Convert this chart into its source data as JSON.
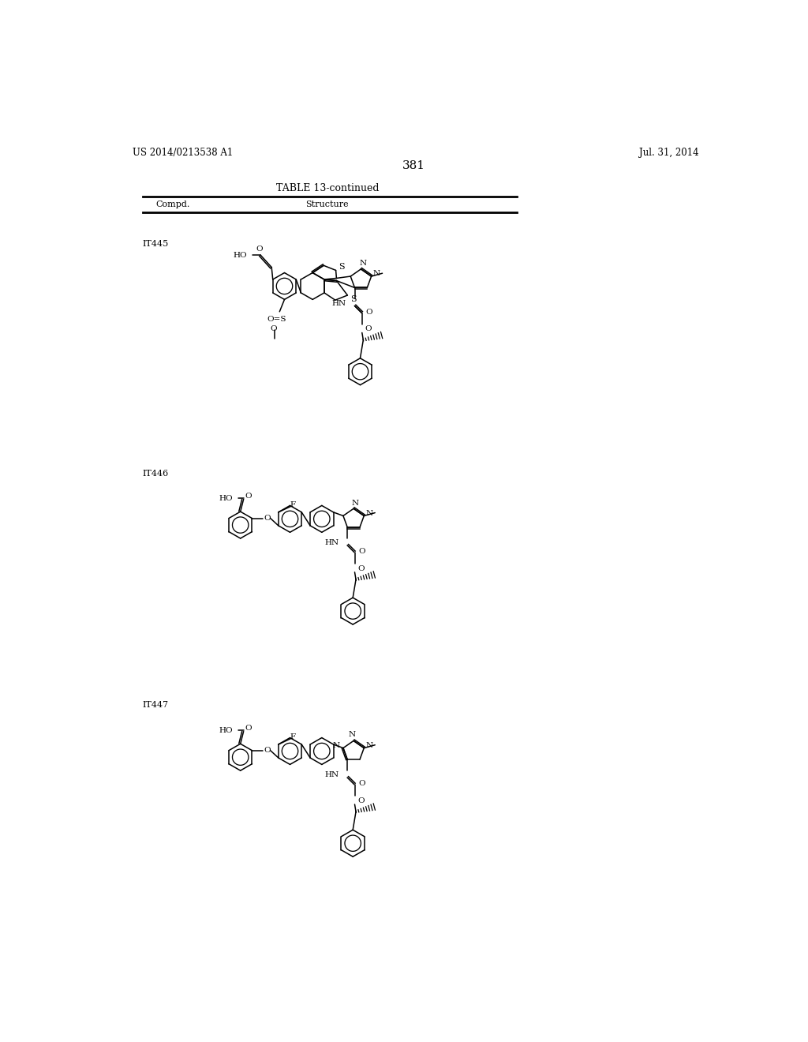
{
  "page_number": "381",
  "patent_number": "US 2014/0213538 A1",
  "patent_date": "Jul. 31, 2014",
  "table_title": "TABLE 13-continued",
  "col1_header": "Compd.",
  "col2_header": "Structure",
  "compounds": [
    "IT445",
    "IT446",
    "IT447"
  ],
  "background_color": "#ffffff",
  "text_color": "#000000",
  "line_color": "#000000"
}
